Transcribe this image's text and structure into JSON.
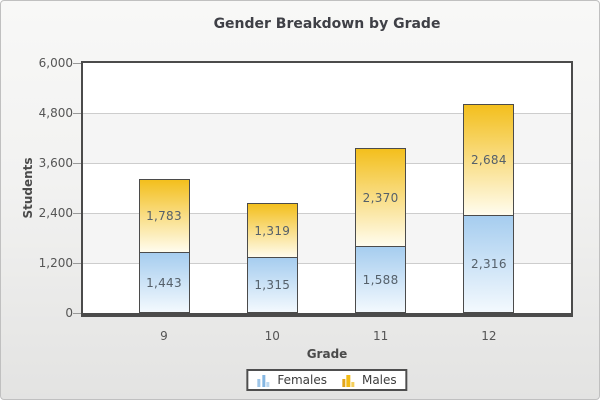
{
  "chart_data": {
    "type": "bar",
    "stacked": true,
    "title": "Gender Breakdown by Grade",
    "xlabel": "Grade",
    "ylabel": "Students",
    "categories": [
      "9",
      "10",
      "11",
      "12"
    ],
    "series": [
      {
        "name": "Females",
        "values": [
          1443,
          1315,
          1588,
          2316
        ],
        "value_labels": [
          "1,443",
          "1,315",
          "1,588",
          "2,316"
        ],
        "color_top": "#A6CDEF",
        "color_bottom": "#F3F9FE",
        "icon_colors": [
          "#9FC6E8",
          "#85B7E2",
          "#BCD8F0"
        ]
      },
      {
        "name": "Males",
        "values": [
          1783,
          1319,
          2370,
          2684
        ],
        "value_labels": [
          "1,783",
          "1,319",
          "2,370",
          "2,684"
        ],
        "color_top": "#F3BF1D",
        "color_bottom": "#FFFCEE",
        "icon_colors": [
          "#E2A51A",
          "#F2BB16",
          "#F4CE5A"
        ]
      }
    ],
    "totals": [
      3226,
      2634,
      3958,
      5000
    ],
    "ylim": [
      0,
      6000
    ],
    "ytick_interval": 1200,
    "ytick_labels": [
      "0",
      "1,200",
      "2,400",
      "3,600",
      "4,800",
      "6,000"
    ],
    "grid": "horizontal gridlines with alternating bands",
    "band_colors": [
      "#ffffff",
      "#f5f5f5"
    ],
    "legend_position": "bottom",
    "legend_labels": [
      "Females",
      "Males"
    ]
  },
  "style_colors": {
    "accent_gold": "#F3BF1D",
    "accent_blue": "#A6CDEF",
    "frame": "#4b4b4b",
    "gridline": "#cdcdcd",
    "text_muted": "#555555",
    "title_text": "#3f4046"
  }
}
